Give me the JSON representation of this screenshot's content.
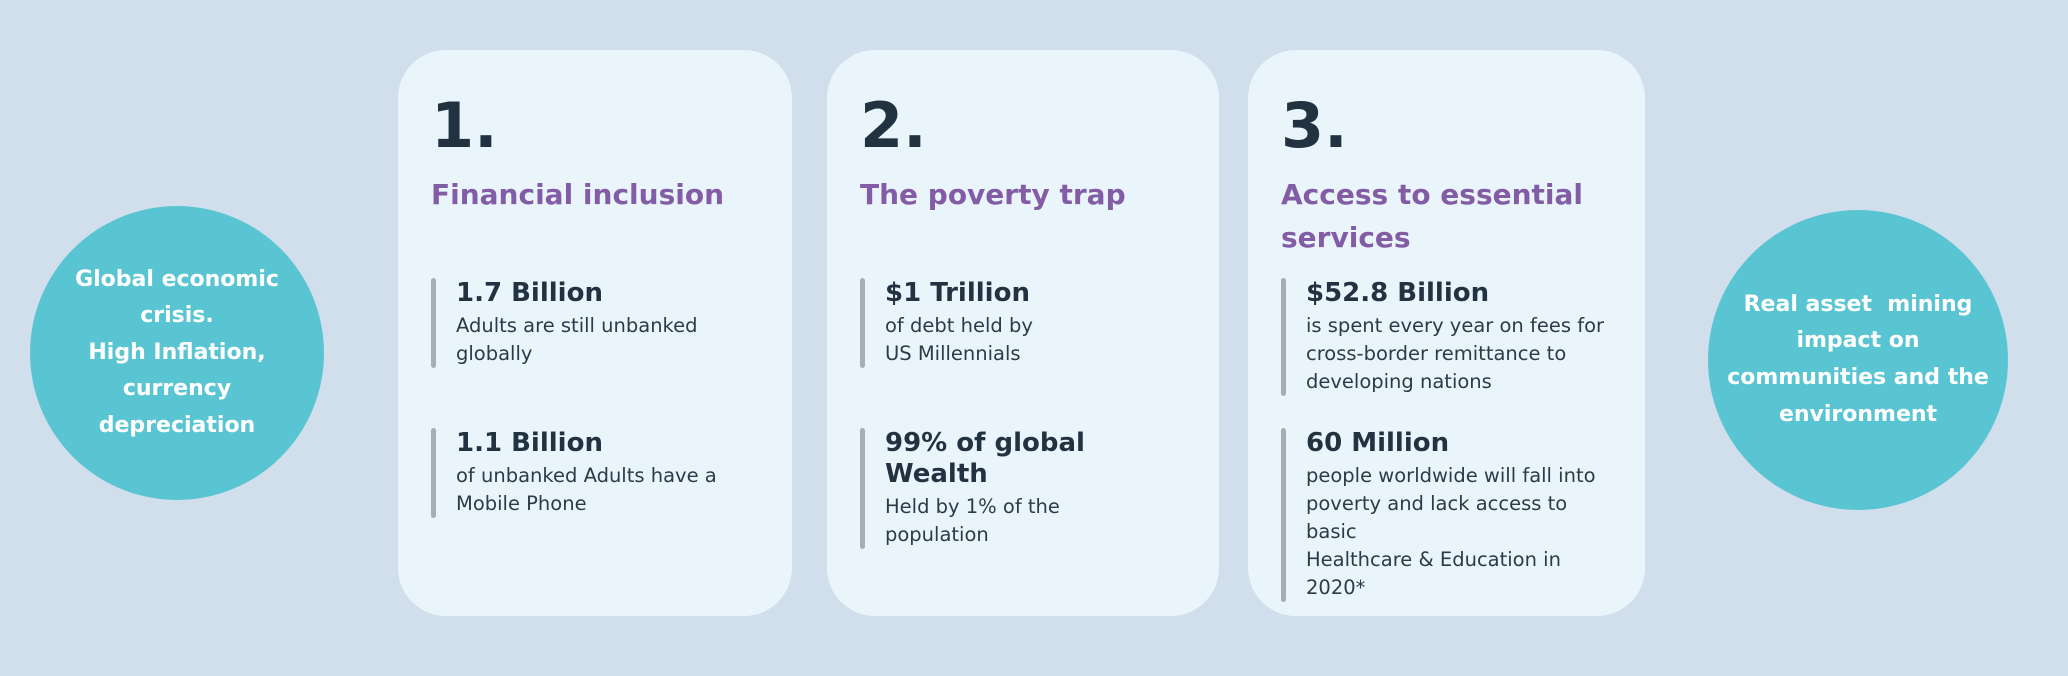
{
  "colors": {
    "background": "#d0dfeb",
    "card_background": "#eaf4fb",
    "circle_teal": "#5ac5d2",
    "heading_purple": "#835ca6",
    "text_dark_navy": "#233240",
    "stat_bar_gray": "#a5aeb5",
    "circle_text": "#ffffff"
  },
  "circles": {
    "left": {
      "text": "Global economic\ncrisis.\nHigh Inflation,\ncurrency\ndepreciation"
    },
    "right": {
      "text": "Real asset  mining\nimpact on\ncommunities and the\nenvironment"
    }
  },
  "cards": [
    {
      "number": "1.",
      "title": "Financial inclusion",
      "stats": [
        {
          "value": "1.7 Billion",
          "description": "Adults are still unbanked\nglobally"
        },
        {
          "value": "1.1 Billion",
          "description": "of unbanked Adults have a\nMobile Phone"
        }
      ]
    },
    {
      "number": "2.",
      "title": "The poverty trap",
      "stats": [
        {
          "value": "$1 Trillion",
          "description": "of debt held by\nUS Millennials"
        },
        {
          "value": "99% of global Wealth",
          "description": "Held by 1% of the\npopulation"
        }
      ]
    },
    {
      "number": "3.",
      "title": "Access to essential services",
      "stats": [
        {
          "value": "$52.8 Billion",
          "description": "is spent every year on fees for\ncross-border remittance to\ndeveloping nations"
        },
        {
          "value": "60 Million",
          "description": "people worldwide will fall into\npoverty and lack access to basic\nHealthcare & Education in 2020*"
        }
      ]
    }
  ]
}
